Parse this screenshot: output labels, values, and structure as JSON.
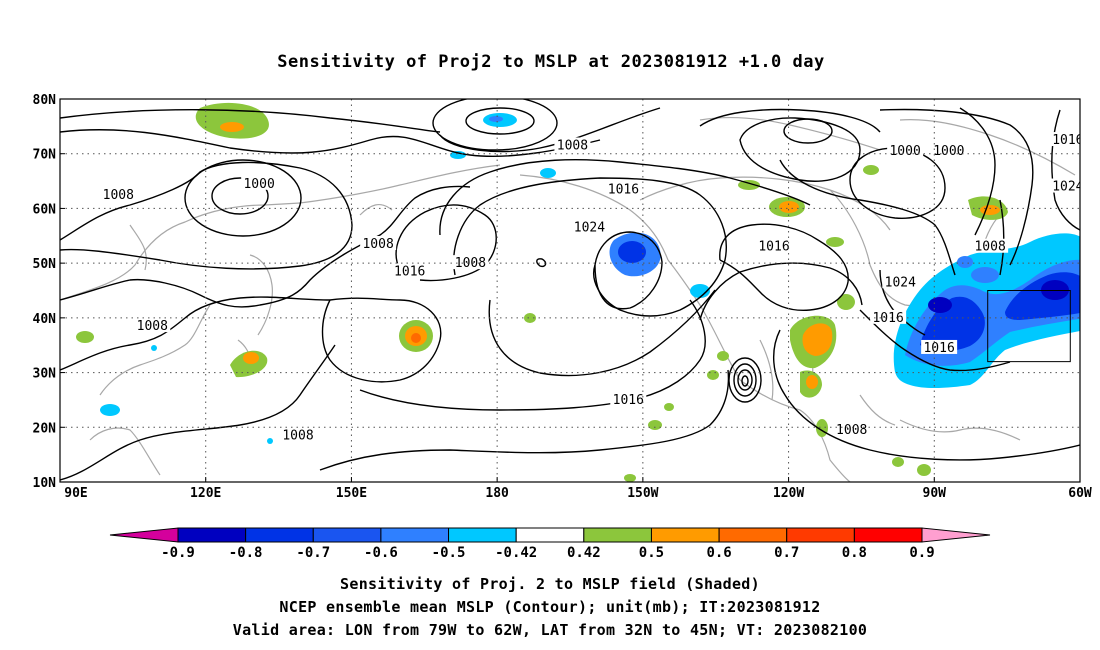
{
  "title": "Sensitivity of Proj2 to MSLP at 2023081912 +1.0 day",
  "map": {
    "lon_range": [
      90,
      300
    ],
    "lat_range": [
      10,
      80
    ],
    "x_ticks": [
      {
        "lon": 90,
        "label": "90E"
      },
      {
        "lon": 120,
        "label": "120E"
      },
      {
        "lon": 150,
        "label": "150E"
      },
      {
        "lon": 180,
        "label": "180"
      },
      {
        "lon": 210,
        "label": "150W"
      },
      {
        "lon": 240,
        "label": "120W"
      },
      {
        "lon": 270,
        "label": "90W"
      },
      {
        "lon": 300,
        "label": "60W"
      }
    ],
    "y_ticks": [
      {
        "lat": 10,
        "label": "10N"
      },
      {
        "lat": 20,
        "label": "20N"
      },
      {
        "lat": 30,
        "label": "30N"
      },
      {
        "lat": 40,
        "label": "40N"
      },
      {
        "lat": 50,
        "label": "50N"
      },
      {
        "lat": 60,
        "label": "60N"
      },
      {
        "lat": 70,
        "label": "70N"
      },
      {
        "lat": 80,
        "label": "80N"
      }
    ],
    "grid": "dotted",
    "valid_box": {
      "lon_min": 281,
      "lon_max": 298,
      "lat_min": 32,
      "lat_max": 45
    },
    "contour_labels": [
      {
        "text": "1008",
        "lon": 195.5,
        "lat": 71.5
      },
      {
        "text": "1000",
        "lon": 131,
        "lat": 64.5
      },
      {
        "text": "1008",
        "lon": 102,
        "lat": 62.5
      },
      {
        "text": "1016",
        "lon": 206,
        "lat": 63.5
      },
      {
        "text": "1000",
        "lon": 264,
        "lat": 70.5
      },
      {
        "text": "1000",
        "lon": 273,
        "lat": 70.5
      },
      {
        "text": "1016",
        "lon": 297.5,
        "lat": 72.5
      },
      {
        "text": "1024",
        "lon": 297.5,
        "lat": 64
      },
      {
        "text": "1024",
        "lon": 199,
        "lat": 56.5
      },
      {
        "text": "1008",
        "lon": 155.5,
        "lat": 53.5
      },
      {
        "text": "1008",
        "lon": 174.5,
        "lat": 50
      },
      {
        "text": "1016",
        "lon": 162,
        "lat": 48.5
      },
      {
        "text": "1016",
        "lon": 237,
        "lat": 53
      },
      {
        "text": "1008",
        "lon": 281.5,
        "lat": 53
      },
      {
        "text": "1024",
        "lon": 263,
        "lat": 46.5
      },
      {
        "text": "1008",
        "lon": 109,
        "lat": 38.5
      },
      {
        "text": "1016",
        "lon": 260.5,
        "lat": 40
      },
      {
        "text": "1016",
        "lon": 271,
        "lat": 34.5
      },
      {
        "text": "1016",
        "lon": 207,
        "lat": 25
      },
      {
        "text": "1008",
        "lon": 139,
        "lat": 18.5
      },
      {
        "text": "1008",
        "lon": 253,
        "lat": 19.5
      }
    ]
  },
  "colorbar": {
    "ticks": [
      "-0.9",
      "-0.8",
      "-0.7",
      "-0.6",
      "-0.5",
      "-0.42",
      "0.42",
      "0.5",
      "0.6",
      "0.7",
      "0.8",
      "0.9"
    ],
    "colors": [
      "#0000c0",
      "#0033e6",
      "#1a55f0",
      "#2f80ff",
      "#00c8ff",
      "#ffffff",
      "#8cc63c",
      "#ff9b00",
      "#ff6a00",
      "#ff3a00",
      "#ff0000"
    ],
    "under_color": "#d4009c",
    "over_color": "#ff9fd0"
  },
  "caption": [
    "Sensitivity of Proj. 2 to MSLP field (Shaded)",
    "NCEP ensemble mean MSLP (Contour); unit(mb); IT:2023081912",
    "Valid area: LON from 79W to 62W, LAT from 32N to 45N; VT: 2023082100"
  ]
}
